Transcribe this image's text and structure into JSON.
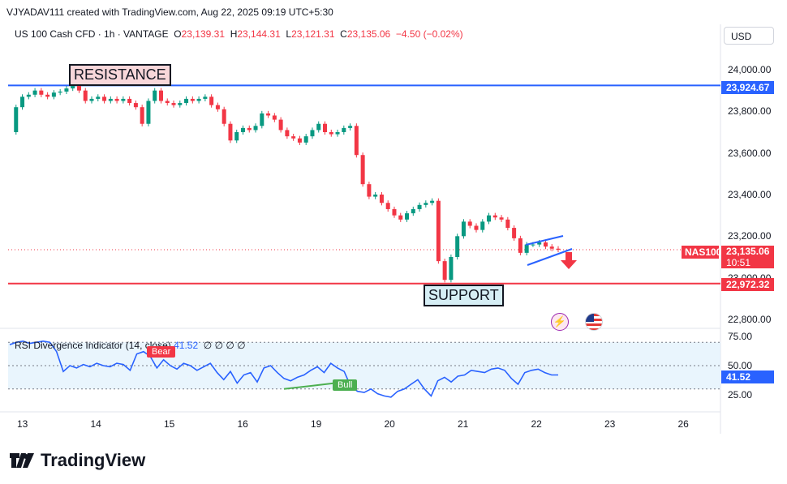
{
  "header": {
    "text": "VJYADAV111 created with TradingView.com, Aug 22, 2025 09:19 UTC+5:30"
  },
  "legend": {
    "symbol": "US 100 Cash CFD · 1h · VANTAGE",
    "open_label": "O",
    "open": "23,139.31",
    "high_label": "H",
    "high": "23,144.31",
    "low_label": "L",
    "low": "23,121.31",
    "close_label": "C",
    "close": "23,135.06",
    "change": "−4.50 (−0.02%)"
  },
  "currency": "USD",
  "annotations": {
    "resistance": "RESISTANCE",
    "support": "SUPPORT"
  },
  "price_tags": {
    "resistance": "23,924.67",
    "current": "23,135.06",
    "countdown": "10:51",
    "symbol_tag": "NAS100",
    "support": "22,972.32",
    "rsi": "41.52"
  },
  "rsi": {
    "title": "RSI Divergence Indicator (14, close)",
    "value": "41.52",
    "extras": "∅ ∅ ∅ ∅",
    "bear_label": "Bear",
    "bull_label": "Bull"
  },
  "brand": {
    "name": "TradingView"
  },
  "colors": {
    "up": "#089981",
    "down": "#f23645",
    "resistance_line": "#2962ff",
    "rsi_line": "#2962ff",
    "bear": "#f23645",
    "bull": "#4caf50"
  },
  "chart_data": [
    {
      "type": "candlestick",
      "title": "US 100 Cash CFD · 1h · VANTAGE",
      "ylim": [
        22750,
        24050
      ],
      "y_ticks": [
        "24,000.00",
        "23,800.00",
        "23,600.00",
        "23,400.00",
        "23,200.00",
        "23,000.00",
        "22,800.00"
      ],
      "x_ticks": [
        "13",
        "14",
        "15",
        "16",
        "19",
        "20",
        "21",
        "22",
        "23",
        "26"
      ],
      "levels": [
        {
          "name": "RESISTANCE",
          "value": 23924.67
        },
        {
          "name": "SUPPORT",
          "value": 22972.32
        }
      ],
      "close_path": [
        23700,
        23820,
        23870,
        23880,
        23900,
        23880,
        23870,
        23890,
        23895,
        23910,
        23930,
        23900,
        23850,
        23860,
        23870,
        23850,
        23860,
        23850,
        23860,
        23840,
        23820,
        23740,
        23850,
        23900,
        23850,
        23840,
        23830,
        23840,
        23860,
        23850,
        23860,
        23870,
        23830,
        23810,
        23740,
        23660,
        23700,
        23720,
        23710,
        23730,
        23790,
        23780,
        23760,
        23710,
        23680,
        23670,
        23650,
        23680,
        23710,
        23740,
        23700,
        23690,
        23700,
        23720,
        23730,
        23590,
        23450,
        23390,
        23400,
        23360,
        23330,
        23300,
        23280,
        23310,
        23330,
        23350,
        23360,
        23370,
        23080,
        22990,
        23100,
        23200,
        23270,
        23250,
        23230,
        23270,
        23300,
        23290,
        23280,
        23240,
        23190,
        23120,
        23160,
        23160,
        23170,
        23150,
        23140,
        23135
      ]
    },
    {
      "type": "line",
      "title": "RSI Divergence Indicator (14, close)",
      "ylim": [
        20,
        75
      ],
      "y_ticks": [
        "75.00",
        "50.00",
        "25.00"
      ],
      "series": [
        {
          "name": "RSI",
          "values": [
            68,
            70,
            71,
            69,
            70,
            71,
            70,
            62,
            45,
            50,
            48,
            51,
            49,
            52,
            50,
            49,
            52,
            51,
            46,
            60,
            62,
            58,
            48,
            55,
            50,
            47,
            52,
            50,
            46,
            49,
            52,
            44,
            38,
            45,
            35,
            42,
            44,
            36,
            48,
            50,
            44,
            39,
            37,
            40,
            42,
            46,
            49,
            44,
            52,
            48,
            45,
            32,
            28,
            27,
            30,
            26,
            24,
            23,
            28,
            30,
            34,
            38,
            30,
            24,
            37,
            40,
            36,
            41,
            42,
            46,
            45,
            44,
            47,
            48,
            46,
            39,
            34,
            44,
            46,
            47,
            44,
            42,
            42
          ]
        }
      ]
    }
  ]
}
